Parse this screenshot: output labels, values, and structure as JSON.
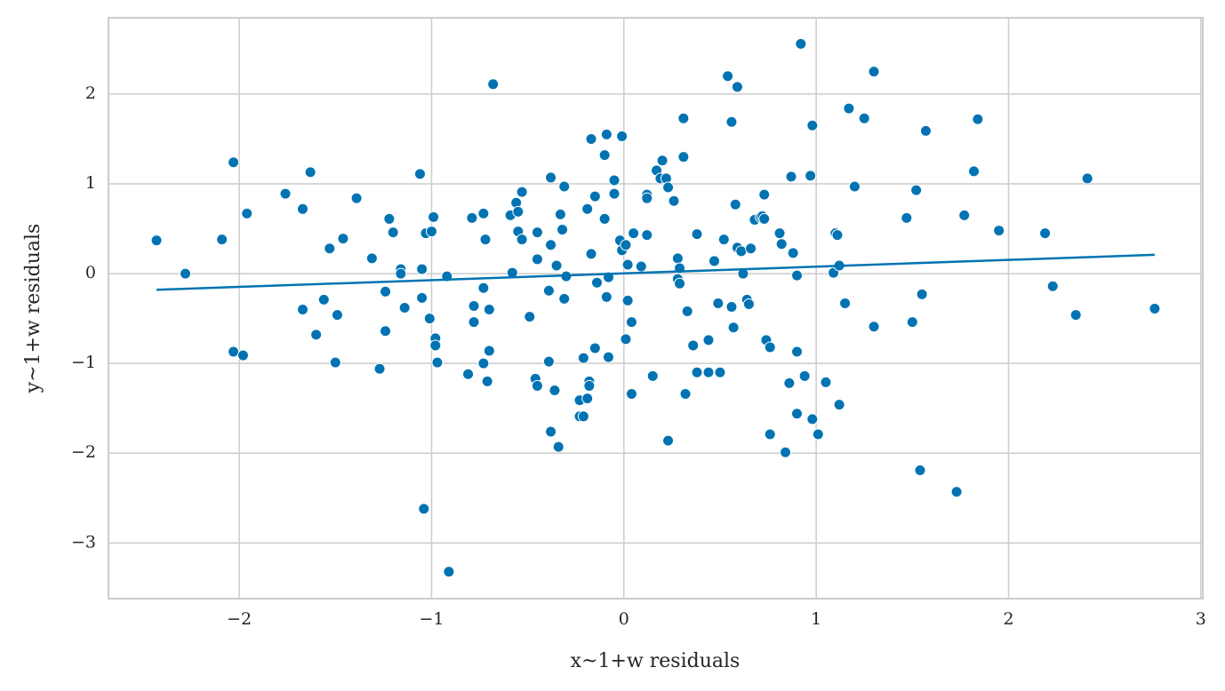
{
  "chart_data": {
    "type": "scatter",
    "xlabel": "x~1+w residuals",
    "ylabel": "y~1+w residuals",
    "xlim": [
      -2.68,
      3.01
    ],
    "ylim": [
      -3.62,
      2.85
    ],
    "xticks": [
      {
        "value": -2,
        "label": "−2"
      },
      {
        "value": -1,
        "label": "−1"
      },
      0,
      1,
      2,
      3
    ],
    "yticks": [
      {
        "value": -3,
        "label": "−3"
      },
      {
        "value": -2,
        "label": "−2"
      },
      {
        "value": -1,
        "label": "−1"
      },
      0,
      1,
      2
    ],
    "grid": true,
    "color": "#0173b2",
    "x": [
      -2.43,
      -2.28,
      -2.09,
      -2.03,
      -1.96,
      -2.03,
      -1.98,
      -1.76,
      -1.67,
      -1.67,
      -1.63,
      -1.6,
      -1.56,
      -1.53,
      -1.49,
      -1.5,
      -1.46,
      -1.39,
      -1.31,
      -1.27,
      -1.24,
      -1.24,
      -1.22,
      -1.2,
      -1.16,
      -1.16,
      -1.14,
      -1.06,
      -1.05,
      -1.05,
      -1.03,
      -1.0,
      -0.99,
      -1.01,
      -1.04,
      -0.98,
      -0.98,
      -0.97,
      -0.91,
      -0.92,
      -0.81,
      -0.79,
      -0.78,
      -0.78,
      -0.73,
      -0.73,
      -0.72,
      -0.73,
      -0.71,
      -0.7,
      -0.7,
      -0.68,
      -0.59,
      -0.58,
      -0.56,
      -0.55,
      -0.55,
      -0.53,
      -0.53,
      -0.49,
      -0.46,
      -0.45,
      -0.45,
      -0.45,
      -0.39,
      -0.39,
      -0.38,
      -0.38,
      -0.38,
      -0.36,
      -0.35,
      -0.34,
      -0.33,
      -0.32,
      -0.31,
      -0.31,
      -0.3,
      -0.23,
      -0.23,
      -0.21,
      -0.21,
      -0.19,
      -0.19,
      -0.18,
      -0.18,
      -0.17,
      -0.17,
      -0.15,
      -0.15,
      -0.14,
      -0.1,
      -0.1,
      -0.09,
      -0.09,
      -0.08,
      -0.08,
      -0.05,
      -0.05,
      -0.02,
      -0.01,
      -0.01,
      0.01,
      0.01,
      0.02,
      0.02,
      0.04,
      0.04,
      0.05,
      0.09,
      0.12,
      0.12,
      0.12,
      0.15,
      0.17,
      0.19,
      0.2,
      0.22,
      0.23,
      0.23,
      0.26,
      0.28,
      0.28,
      0.29,
      0.29,
      0.31,
      0.31,
      0.32,
      0.33,
      0.36,
      0.38,
      0.38,
      0.44,
      0.44,
      0.47,
      0.49,
      0.5,
      0.52,
      0.54,
      0.56,
      0.56,
      0.57,
      0.58,
      0.59,
      0.59,
      0.61,
      0.62,
      0.64,
      0.65,
      0.66,
      0.68,
      0.71,
      0.72,
      0.73,
      0.73,
      0.74,
      0.76,
      0.76,
      0.81,
      0.82,
      0.84,
      0.86,
      0.87,
      0.88,
      0.9,
      0.9,
      0.9,
      0.92,
      0.94,
      0.97,
      0.98,
      0.98,
      1.01,
      1.05,
      1.09,
      1.1,
      1.11,
      1.12,
      1.12,
      1.15,
      1.17,
      1.2,
      1.25,
      1.3,
      1.3,
      1.47,
      1.5,
      1.52,
      1.54,
      1.55,
      1.57,
      1.73,
      1.77,
      1.82,
      1.84,
      1.95,
      2.19,
      2.23,
      2.35,
      2.41,
      2.76
    ],
    "values": [
      0.37,
      0.0,
      0.38,
      1.24,
      0.67,
      -0.87,
      -0.91,
      0.89,
      0.72,
      -0.4,
      1.13,
      -0.68,
      -0.29,
      0.28,
      -0.46,
      -0.99,
      0.39,
      0.84,
      0.17,
      -1.06,
      -0.2,
      -0.64,
      0.61,
      0.46,
      0.05,
      0.0,
      -0.38,
      1.11,
      0.05,
      -0.27,
      0.45,
      0.47,
      0.63,
      -0.5,
      -2.62,
      -0.72,
      -0.8,
      -0.99,
      -3.32,
      -0.03,
      -1.12,
      0.62,
      -0.36,
      -0.54,
      0.67,
      -0.16,
      0.38,
      -1.0,
      -1.2,
      -0.4,
      -0.86,
      2.11,
      0.65,
      0.01,
      0.79,
      0.69,
      0.47,
      0.38,
      0.91,
      -0.48,
      -1.17,
      -1.25,
      0.46,
      0.16,
      -0.19,
      -0.98,
      -1.76,
      0.32,
      1.07,
      -1.3,
      0.09,
      -1.93,
      0.66,
      0.49,
      -0.28,
      0.97,
      -0.03,
      -1.41,
      -1.59,
      -1.59,
      -0.94,
      0.72,
      -1.39,
      -1.2,
      -1.25,
      0.22,
      1.5,
      -0.83,
      0.86,
      -0.1,
      0.61,
      1.32,
      1.55,
      -0.26,
      -0.04,
      -0.93,
      0.89,
      1.04,
      0.37,
      0.26,
      1.53,
      0.32,
      -0.73,
      -0.3,
      0.1,
      -0.54,
      -1.34,
      0.45,
      0.08,
      0.88,
      0.84,
      0.43,
      -1.14,
      1.15,
      1.06,
      1.26,
      1.06,
      -1.86,
      0.96,
      0.81,
      0.17,
      -0.06,
      0.06,
      -0.11,
      1.3,
      1.73,
      -1.34,
      -0.42,
      -0.8,
      0.44,
      -1.1,
      -0.74,
      -1.1,
      0.14,
      -0.33,
      -1.1,
      0.38,
      2.2,
      1.69,
      -0.37,
      -0.6,
      0.77,
      2.08,
      0.29,
      0.25,
      0.0,
      -0.29,
      -0.34,
      0.28,
      0.6,
      0.63,
      0.64,
      0.61,
      0.88,
      -0.74,
      -0.82,
      -1.79,
      0.45,
      0.33,
      -1.99,
      -1.22,
      1.08,
      0.23,
      -0.02,
      -0.87,
      -1.56,
      2.56,
      -1.14,
      1.09,
      -1.62,
      1.65,
      -1.79,
      -1.21,
      0.01,
      0.45,
      0.43,
      0.09,
      -1.46,
      -0.33,
      1.84,
      0.97,
      1.73,
      2.25,
      -0.59,
      0.62,
      -0.54,
      0.93,
      -2.19,
      -0.23,
      1.59,
      -2.43,
      0.65,
      1.14,
      1.72,
      0.48,
      0.45,
      -0.14,
      -0.46,
      1.06,
      -0.39
    ],
    "fit": {
      "x": [
        -2.43,
        2.76
      ],
      "values": [
        -0.18,
        0.21
      ],
      "color": "#0173b2"
    }
  }
}
